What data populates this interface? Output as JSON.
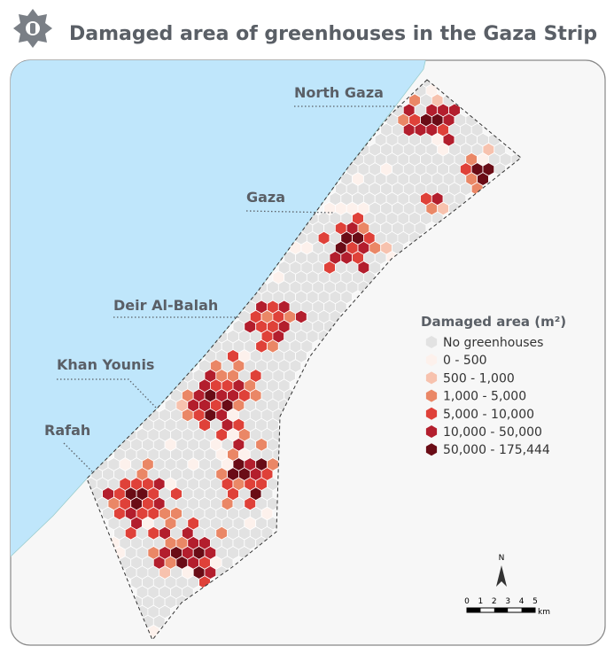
{
  "title": "Damaged area of greenhouses in the Gaza Strip",
  "regions": [
    {
      "label": "North Gaza"
    },
    {
      "label": "Gaza"
    },
    {
      "label": "Deir Al-Balah"
    },
    {
      "label": "Khan Younis"
    },
    {
      "label": "Rafah"
    }
  ],
  "legend": {
    "title": "Damaged area (m²)",
    "items": [
      {
        "label": "No greenhouses",
        "color": "#e2e2e2"
      },
      {
        "label": "0 - 500",
        "color": "#fdf1ec"
      },
      {
        "label": "500 - 1,000",
        "color": "#f7c2ae"
      },
      {
        "label": "1,000 - 5,000",
        "color": "#ea8766"
      },
      {
        "label": "5,000 - 10,000",
        "color": "#df4139"
      },
      {
        "label": "10,000 - 50,000",
        "color": "#b31e2d"
      },
      {
        "label": "50,000 - 175,444",
        "color": "#6a0c16"
      }
    ]
  },
  "north": "N",
  "scale_bar": {
    "ticks": [
      0,
      1,
      2,
      3,
      4,
      5
    ],
    "unit": "km"
  }
}
